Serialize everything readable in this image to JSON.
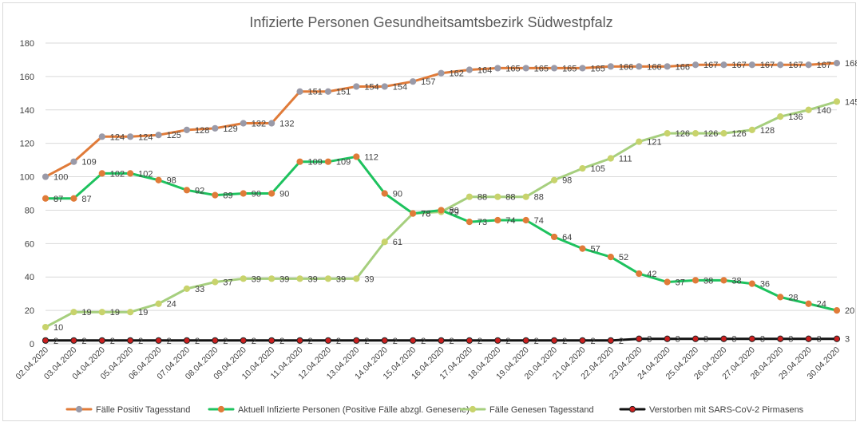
{
  "chart_data": {
    "type": "line",
    "title": "Infizierte Personen Gesundheitsamtsbezirk Südwestpfalz",
    "xlabel": "",
    "ylabel": "",
    "ylim": [
      0,
      180
    ],
    "yticks": [
      0,
      20,
      40,
      60,
      80,
      100,
      120,
      140,
      160,
      180
    ],
    "grid": true,
    "legend_position": "bottom",
    "categories": [
      "02.04.2020",
      "03.04.2020",
      "04.04.2020",
      "05.04.2020",
      "06.04.2020",
      "07.04.2020",
      "08.04.2020",
      "09.04.2020",
      "10.04.2020",
      "11.04.2020",
      "12.04.2020",
      "13.04.2020",
      "14.04.2020",
      "15.04.2020",
      "16.04.2020",
      "17.04.2020",
      "18.04.2020",
      "19.04.2020",
      "20.04.2020",
      "21.04.2020",
      "22.04.2020",
      "23.04.2020",
      "24.04.2020",
      "25.04.2020",
      "26.04.2020",
      "27.04.2020",
      "28.04.2020",
      "29.04.2020",
      "30.04.2020"
    ],
    "series": [
      {
        "name": "Fälle Positiv Tagesstand",
        "line_color": "#e07b39",
        "marker_color": "#9a9aa8",
        "marker_edge": "#9a9aa8",
        "values": [
          100,
          109,
          124,
          124,
          125,
          128,
          129,
          132,
          132,
          151,
          151,
          154,
          154,
          157,
          162,
          164,
          165,
          165,
          165,
          165,
          166,
          166,
          166,
          167,
          167,
          167,
          167,
          167,
          168
        ]
      },
      {
        "name": "Aktuell Infizierte Personen (Positive Fälle abzgl. Genesene)",
        "line_color": "#1ec25e",
        "marker_color": "#e07b39",
        "marker_edge": "#e07b39",
        "values": [
          87,
          87,
          102,
          102,
          98,
          92,
          89,
          90,
          90,
          109,
          109,
          112,
          90,
          78,
          80,
          73,
          74,
          74,
          64,
          57,
          52,
          42,
          37,
          38,
          38,
          36,
          28,
          24,
          20
        ]
      },
      {
        "name": "Fälle Genesen Tagesstand",
        "line_color": "#a6cf7e",
        "marker_color": "#c8d36c",
        "marker_edge": "#c8d36c",
        "values": [
          10,
          19,
          19,
          19,
          24,
          33,
          37,
          39,
          39,
          39,
          39,
          39,
          61,
          78,
          79,
          88,
          88,
          88,
          98,
          105,
          111,
          121,
          126,
          126,
          126,
          128,
          136,
          140,
          145
        ]
      },
      {
        "name": "Verstorben mit SARS-CoV-2 Pirmasens",
        "line_color": "#111111",
        "marker_color": "#cc1f1f",
        "marker_edge": "#222222",
        "values": [
          2,
          2,
          2,
          2,
          2,
          2,
          2,
          2,
          2,
          2,
          2,
          2,
          2,
          2,
          2,
          2,
          2,
          2,
          2,
          2,
          2,
          3,
          3,
          3,
          3,
          3,
          3,
          3,
          3
        ]
      }
    ]
  }
}
